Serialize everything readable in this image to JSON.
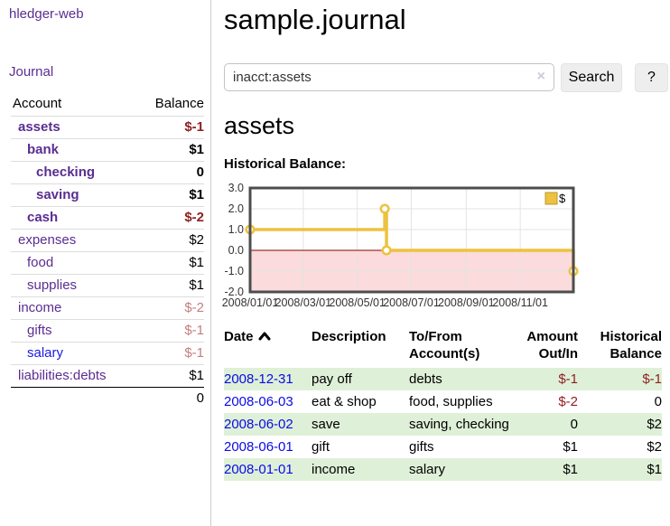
{
  "app": {
    "brand": "hledger-web",
    "nav_journal": "Journal"
  },
  "sidebar": {
    "accounts_header": {
      "account": "Account",
      "balance": "Balance"
    },
    "accounts": [
      {
        "name": "assets",
        "indent": 0,
        "bold": true,
        "balance": "$-1",
        "balance_style": "neg-strong"
      },
      {
        "name": "bank",
        "indent": 1,
        "bold": true,
        "balance": "$1",
        "balance_style": "pos-strong"
      },
      {
        "name": "checking",
        "indent": 2,
        "bold": true,
        "balance": "0",
        "balance_style": "pos-strong"
      },
      {
        "name": "saving",
        "indent": 2,
        "bold": true,
        "balance": "$1",
        "balance_style": "pos-strong"
      },
      {
        "name": "cash",
        "indent": 1,
        "bold": true,
        "balance": "$-2",
        "balance_style": "neg-strong"
      },
      {
        "name": "expenses",
        "indent": 0,
        "bold": false,
        "balance": "$2",
        "balance_style": "pos"
      },
      {
        "name": "food",
        "indent": 1,
        "bold": false,
        "balance": "$1",
        "balance_style": "pos"
      },
      {
        "name": "supplies",
        "indent": 1,
        "bold": false,
        "balance": "$1",
        "balance_style": "pos"
      },
      {
        "name": "income",
        "indent": 0,
        "bold": false,
        "balance": "$-2",
        "balance_style": "neg"
      },
      {
        "name": "gifts",
        "indent": 1,
        "bold": false,
        "balance": "$-1",
        "balance_style": "neg"
      },
      {
        "name": "salary",
        "indent": 1,
        "bold": false,
        "balance": "$-1",
        "balance_style": "neg",
        "link_style": "blue"
      },
      {
        "name": "liabilities:debts",
        "indent": 0,
        "bold": false,
        "balance": "$1",
        "balance_style": "pos"
      }
    ],
    "total": "0"
  },
  "header": {
    "title": "sample.journal"
  },
  "search": {
    "value": "inacct:assets",
    "clear_icon": "×",
    "button": "Search",
    "help_button": "?"
  },
  "account_page": {
    "heading": "assets",
    "chart_label": "Historical Balance:"
  },
  "chart_data": {
    "type": "line",
    "title": "Historical Balance:",
    "step": true,
    "series": [
      {
        "name": "$",
        "color": "#EDC240",
        "points": [
          {
            "x": "2008-01-01",
            "y": 1.0
          },
          {
            "x": "2008-06-01",
            "y": 2.0
          },
          {
            "x": "2008-06-03",
            "y": 0.0
          },
          {
            "x": "2008-12-31",
            "y": -1.0
          }
        ]
      }
    ],
    "xlim": [
      "2008-01-01",
      "2008-12-31"
    ],
    "ylim": [
      -2.0,
      3.0
    ],
    "x_ticks": [
      "2008/01/01",
      "2008/03/01",
      "2008/05/01",
      "2008/07/01",
      "2008/09/01",
      "2008/11/01"
    ],
    "y_ticks": [
      3.0,
      2.0,
      1.0,
      0.0,
      -1.0,
      -2.0
    ],
    "legend": {
      "position": "top-right",
      "label": "$"
    },
    "grid": true,
    "negative_region_color": "#fbdbdb",
    "zero_line_color": "#8b0000",
    "border_color": "#4d4d4d",
    "grid_color": "#e3e3e3"
  },
  "register": {
    "columns": {
      "date": "Date",
      "description": "Description",
      "tofrom": "To/From Account(s)",
      "amount": "Amount Out/In",
      "balance": "Historical Balance"
    },
    "rows": [
      {
        "date": "2008-12-31",
        "description": "pay off",
        "accounts": "debts",
        "amount": "$-1",
        "amount_neg": true,
        "balance": "$-1",
        "balance_neg": true
      },
      {
        "date": "2008-06-03",
        "description": "eat & shop",
        "accounts": "food, supplies",
        "amount": "$-2",
        "amount_neg": true,
        "balance": "0",
        "balance_neg": false
      },
      {
        "date": "2008-06-02",
        "description": "save",
        "accounts": "saving, checking",
        "amount": "0",
        "amount_neg": false,
        "balance": "$2",
        "balance_neg": false
      },
      {
        "date": "2008-06-01",
        "description": "gift",
        "accounts": "gifts",
        "amount": "$1",
        "amount_neg": false,
        "balance": "$2",
        "balance_neg": false
      },
      {
        "date": "2008-01-01",
        "description": "income",
        "accounts": "salary",
        "amount": "$1",
        "amount_neg": false,
        "balance": "$1",
        "balance_neg": false
      }
    ]
  }
}
